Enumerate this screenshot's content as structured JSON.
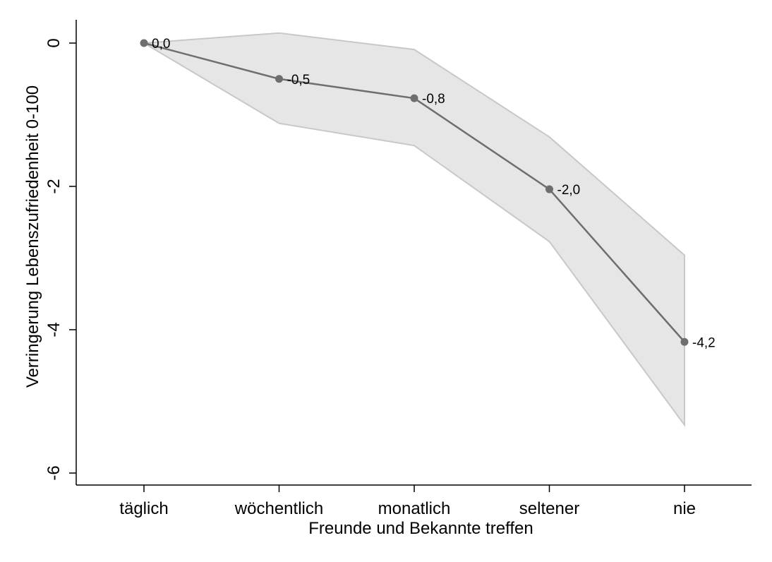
{
  "chart_data": {
    "type": "line",
    "title": "",
    "xlabel": "Freunde und Bekannte treffen",
    "ylabel": "Verringerung Lebenszufriedenheit 0-100",
    "categories": [
      "täglich",
      "wöchentlich",
      "monatlich",
      "seltener",
      "nie"
    ],
    "values": [
      0.0,
      -0.5,
      -0.77,
      -2.04,
      -4.17
    ],
    "ci_upper": [
      0.0,
      0.14,
      -0.09,
      -1.31,
      -2.96
    ],
    "ci_lower": [
      0.0,
      -1.12,
      -1.43,
      -2.77,
      -5.33
    ],
    "data_labels": [
      "0,0",
      "-0,5",
      "-0,8",
      "-2,0",
      "-4,2"
    ],
    "yticks": [
      0,
      -2,
      -4,
      -6
    ],
    "ytick_labels": [
      "0",
      "-2",
      "-4",
      "-6"
    ],
    "ylim": [
      -6,
      0
    ],
    "grid": false,
    "legend": "none",
    "colors": {
      "line": "#6e6e6e",
      "marker": "#6e6e6e",
      "band_fill": "#e6e6e6",
      "band_stroke": "#c8c8c8",
      "axis": "#000000"
    }
  }
}
